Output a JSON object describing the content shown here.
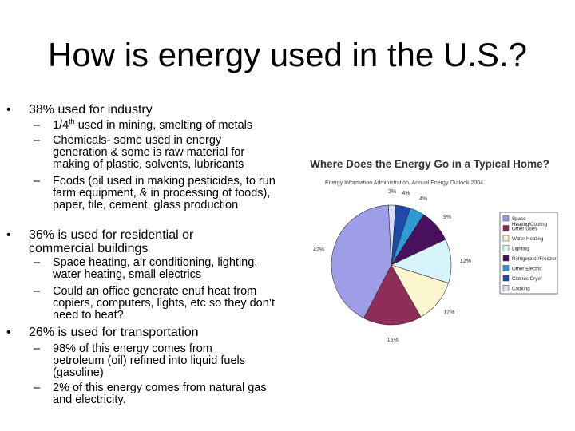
{
  "slide": {
    "title": "How is energy used in the U.S.?",
    "bullet_glyph": "•",
    "dash_glyph": "–",
    "bullets": [
      {
        "text": "38% used for industry",
        "subs": [
          {
            "pre": "1/4",
            "sup": "th",
            "post": " used in mining, smelting of metals"
          },
          {
            "text": "Chemicals- some used in energy generation & some is raw material for making of plastic, solvents, lubricants"
          },
          {
            "text": "Foods (oil used in making pesticides, to run farm equipment, & in processing of foods), paper, tile, cement, glass production"
          }
        ]
      },
      {
        "text": "36% is used for residential or commercial buildings",
        "subs": [
          {
            "text": "Space heating, air conditioning, lighting, water heating, small electrics"
          },
          {
            "text": "Could an office generate enuf heat from copiers, computers, lights, etc so they don’t need to heat?"
          }
        ]
      },
      {
        "text": "26% is used for transportation",
        "subs": [
          {
            "text": "98% of this energy comes from petroleum (oil) refined into liquid fuels (gasoline)"
          },
          {
            "text": "2% of this energy comes from natural gas and electricity."
          }
        ]
      }
    ]
  },
  "chart_data": {
    "type": "pie",
    "title": "Where Does the Energy Go in a Typical Home?",
    "subtitle": "Energy Information Administration, Annual Energy Outlook 2004",
    "legend_position": "right",
    "slices": [
      {
        "label": "Cooking",
        "value": 2,
        "color": "#d9dcf5"
      },
      {
        "label": "Clothes Dryer",
        "value": 4,
        "color": "#1f4aa8"
      },
      {
        "label": "Other Electric",
        "value": 4,
        "color": "#2e9ad6"
      },
      {
        "label": "Refrigerator/Freezer",
        "value": 9,
        "color": "#4a1060"
      },
      {
        "label": "Lighting",
        "value": 12,
        "color": "#d8f4fb"
      },
      {
        "label": "Water Heating",
        "value": 12,
        "color": "#fbf6cf"
      },
      {
        "label": "Other Uses",
        "value": 16,
        "color": "#8f2d5a"
      },
      {
        "label": "Space Heating/Cooling",
        "value": 42,
        "color": "#9d9de8"
      }
    ],
    "pct_labels": [
      "2%",
      "4%",
      "4%",
      "9%",
      "12%",
      "12%",
      "16%",
      "42%"
    ],
    "legend_order": [
      "Space Heating/Cooling",
      "Other Uses",
      "Water Heating",
      "Lighting",
      "Refrigerator/Freezer",
      "Other Electric",
      "Clothes Dryer",
      "Cooking"
    ]
  }
}
